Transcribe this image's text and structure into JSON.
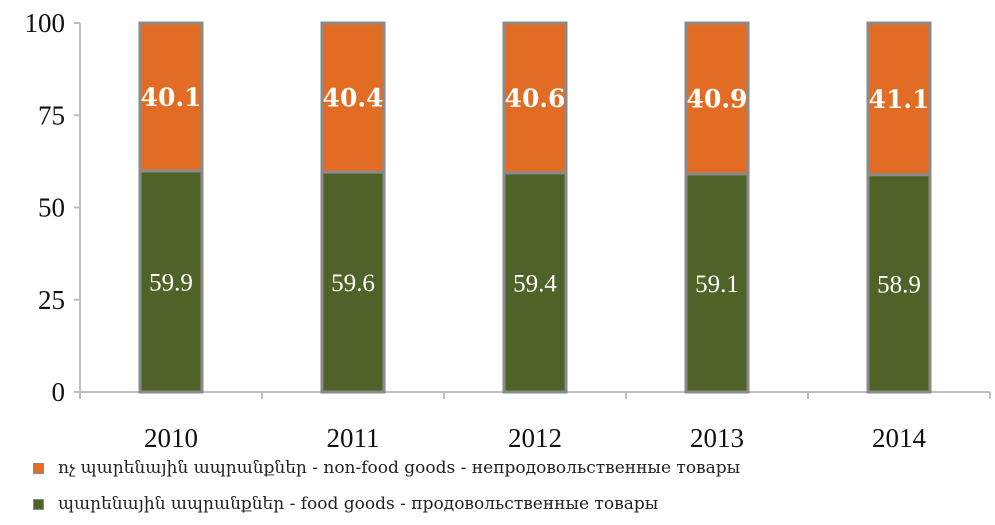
{
  "chart_data": {
    "type": "bar",
    "stacked": true,
    "percent_stacked": true,
    "categories": [
      "2010",
      "2011",
      "2012",
      "2013",
      "2014"
    ],
    "series": [
      {
        "name": "պարենային ապրանքներ - food goods - продовольственные товары",
        "values": [
          59.9,
          59.6,
          59.4,
          59.1,
          58.9
        ],
        "color": "#4f6228"
      },
      {
        "name": "ոչ պարենային ապրանքներ - non-food goods - непродовольственные товары",
        "values": [
          40.1,
          40.4,
          40.6,
          40.9,
          41.1
        ],
        "color": "#e36c25"
      }
    ],
    "yticks": [
      0,
      25,
      50,
      75,
      100
    ],
    "ylim": [
      0,
      100
    ],
    "grid": false,
    "legend_position": "bottom",
    "bar_border_color": "#8a8a8a",
    "axis_color": "#bfbfbf"
  }
}
